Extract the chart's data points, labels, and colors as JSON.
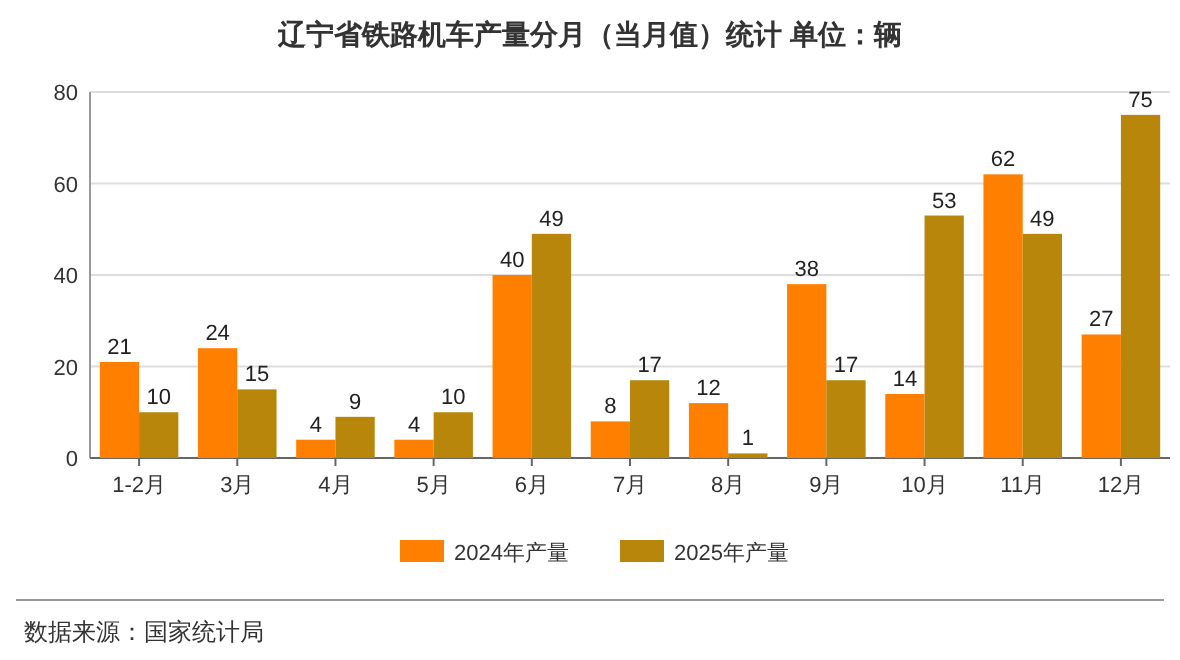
{
  "chart_data": {
    "type": "bar",
    "title": "辽宁省铁路机车产量分月（当月值）统计  单位：辆",
    "categories": [
      "1-2月",
      "3月",
      "4月",
      "5月",
      "6月",
      "7月",
      "8月",
      "9月",
      "10月",
      "11月",
      "12月"
    ],
    "series": [
      {
        "name": "2024年产量",
        "color": "#ff8000",
        "values": [
          21,
          24,
          4,
          4,
          40,
          8,
          12,
          38,
          14,
          62,
          27
        ]
      },
      {
        "name": "2025年产量",
        "color": "#b8860b",
        "values": [
          10,
          15,
          9,
          10,
          49,
          17,
          1,
          17,
          53,
          49,
          75
        ]
      }
    ],
    "ylim": [
      0,
      80
    ],
    "yticks": [
      0,
      20,
      40,
      60,
      80
    ],
    "grid": "y",
    "legend": "bottom",
    "data_labels": true,
    "annotations": [
      "数据来源：国家统计局"
    ]
  }
}
